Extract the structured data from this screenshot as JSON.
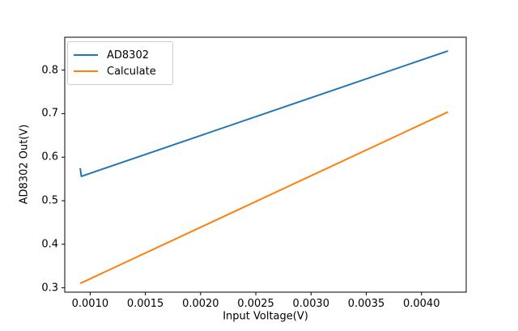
{
  "chart_data": {
    "type": "line",
    "title": "",
    "xlabel": "Input Voltage(V)",
    "ylabel": "AD8302 Out(V)",
    "xlim": [
      0.00077,
      0.004405
    ],
    "ylim": [
      0.29,
      0.8755
    ],
    "x_ticks": [
      0.001,
      0.0015,
      0.002,
      0.0025,
      0.003,
      0.0035,
      0.004
    ],
    "x_tick_labels": [
      "0.0010",
      "0.0015",
      "0.0020",
      "0.0025",
      "0.0030",
      "0.0035",
      "0.0040"
    ],
    "y_ticks": [
      0.3,
      0.4,
      0.5,
      0.6,
      0.7,
      0.8
    ],
    "y_tick_labels": [
      "0.3",
      "0.4",
      "0.5",
      "0.6",
      "0.7",
      "0.8"
    ],
    "grid": false,
    "legend": {
      "position": "upper-left",
      "entries": [
        "AD8302",
        "Calculate"
      ]
    },
    "series": [
      {
        "name": "AD8302",
        "color": "#1f77b4",
        "style": "solid",
        "points": [
          [
            0.00091,
            0.575
          ],
          [
            0.00092,
            0.556
          ],
          [
            0.00424,
            0.844
          ]
        ]
      },
      {
        "name": "Calculate",
        "color": "#ff7f0e",
        "style": "solid",
        "points": [
          [
            0.00091,
            0.31
          ],
          [
            0.00424,
            0.704
          ]
        ]
      }
    ],
    "frame_color": "#000000",
    "background": "#ffffff"
  }
}
